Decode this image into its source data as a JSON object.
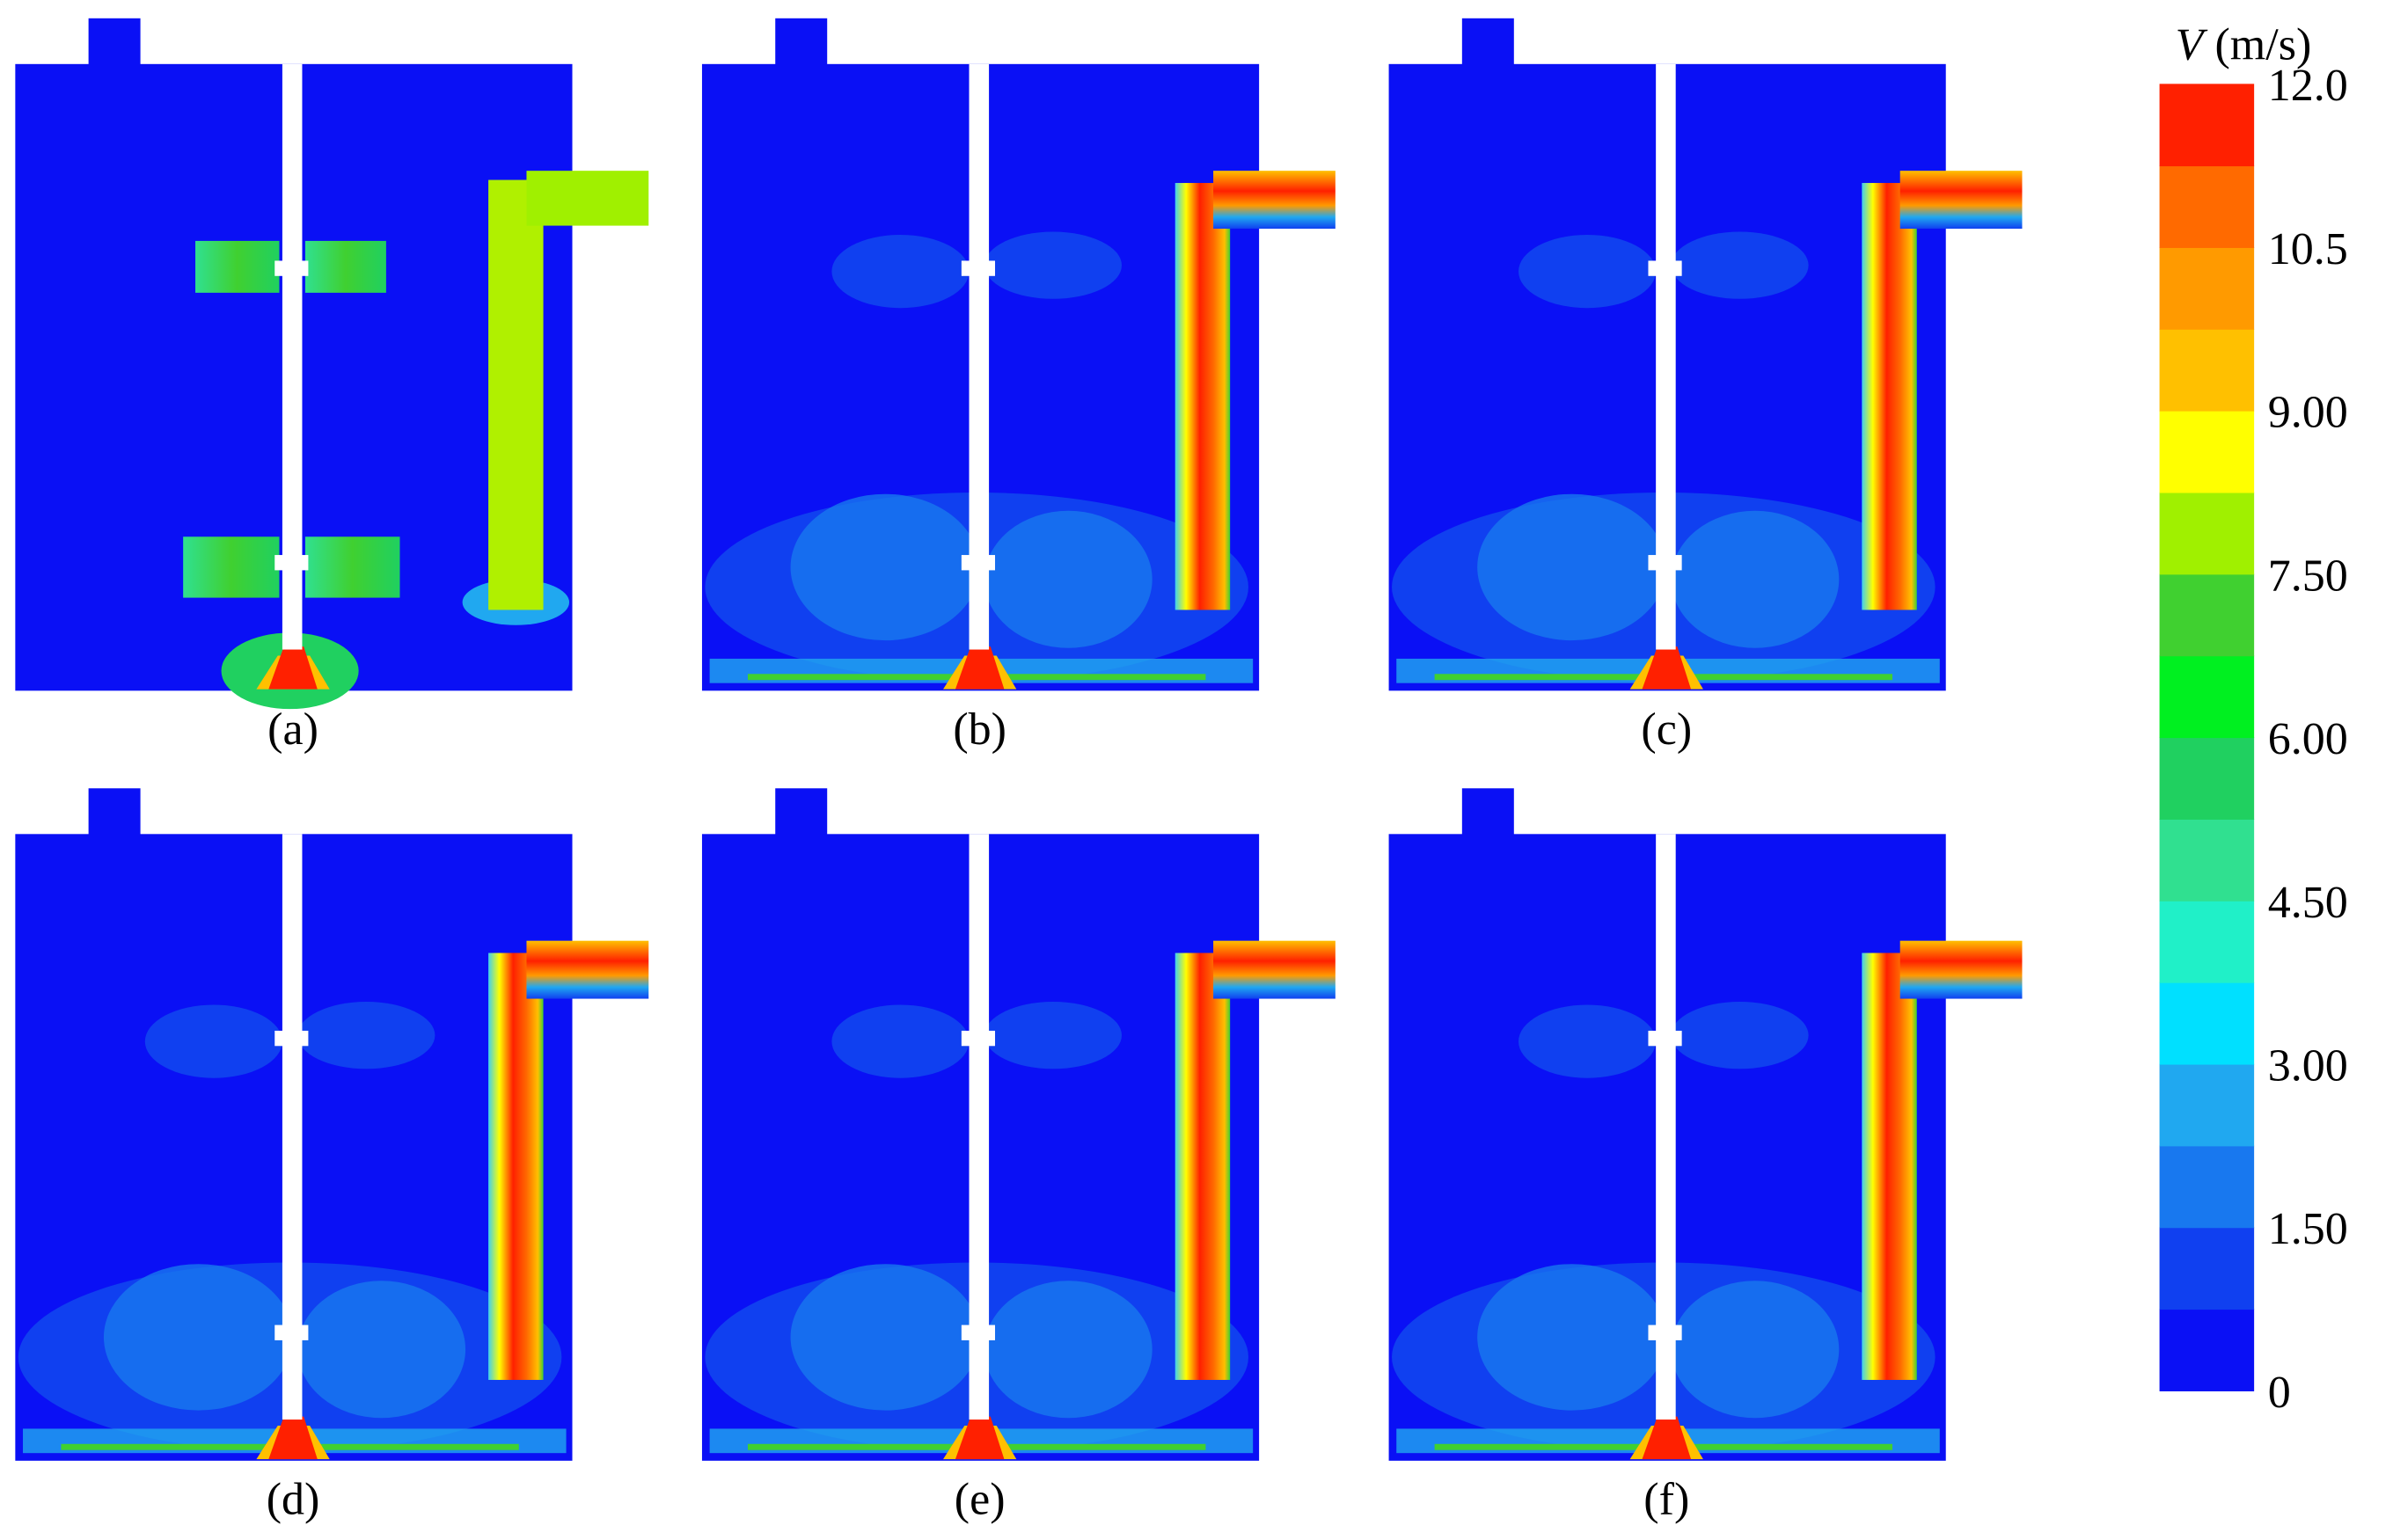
{
  "panels": [
    {
      "label": "(a)"
    },
    {
      "label": "(b)"
    },
    {
      "label": "(c)"
    },
    {
      "label": "(d)"
    },
    {
      "label": "(e)"
    },
    {
      "label": "(f)"
    }
  ],
  "colorbar": {
    "variable": "V",
    "unit": "(m/s)",
    "lim": [
      0,
      12
    ],
    "ticks": [
      {
        "value": 12,
        "label": "12.0"
      },
      10.5,
      {
        "value": 9,
        "label": "9.00"
      },
      {
        "value": 7.5,
        "label": "7.50"
      },
      {
        "value": 6,
        "label": "6.00"
      },
      {
        "value": 4.5,
        "label": "4.50"
      },
      {
        "value": 3,
        "label": "3.00"
      },
      {
        "value": 1.5,
        "label": "1.50"
      },
      0
    ],
    "colors": [
      "#0a10f5",
      "#1040f0",
      "#1878ef",
      "#20a8f0",
      "#00e0ff",
      "#20f0c8",
      "#30e090",
      "#20d060",
      "#00f020",
      "#40d030",
      "#a0f000",
      "#ffff00",
      "#ffc000",
      "#ff9a00",
      "#ff6a00",
      "#ff2000"
    ]
  }
}
